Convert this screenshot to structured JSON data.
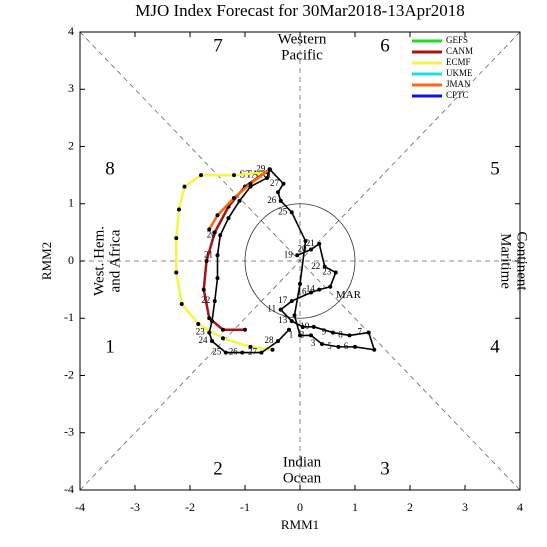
{
  "chart_data": {
    "type": "line",
    "title": "MJO Index Forecast for 30Mar2018-13Apr2018",
    "x_label": "RMM1",
    "y_label": "RMM2",
    "xlim": [
      -4,
      4
    ],
    "ylim": [
      -4,
      4
    ],
    "xticks": [
      -4,
      -3,
      -2,
      -1,
      0,
      1,
      2,
      3,
      4
    ],
    "yticks": [
      -4,
      -3,
      -2,
      -1,
      0,
      1,
      2,
      3,
      4
    ],
    "phases": [
      "1",
      "2",
      "3",
      "4",
      "5",
      "6",
      "7",
      "8"
    ],
    "regions": {
      "top": [
        "Western",
        "Pacific"
      ],
      "bottom": [
        "Indian",
        "Ocean"
      ],
      "left": [
        "West. Hem.",
        "and Africa"
      ],
      "right": [
        "Maritime",
        "Continent"
      ]
    },
    "annotations": [
      "MAR",
      "START"
    ],
    "series": [
      {
        "name": "GEFS",
        "color": "#22dd22",
        "x": [],
        "y": []
      },
      {
        "name": "CANM",
        "color": "#aa1111",
        "x": [
          -0.55,
          -1.0,
          -1.3,
          -1.55,
          -1.7,
          -1.75,
          -1.65,
          -1.4,
          -1.0
        ],
        "y": [
          1.6,
          1.3,
          0.95,
          0.5,
          0.0,
          -0.5,
          -1.0,
          -1.2,
          -1.2
        ]
      },
      {
        "name": "ECMF",
        "color": "#f5f542",
        "x": [
          -0.6,
          -1.2,
          -1.8,
          -2.1,
          -2.2,
          -2.25,
          -2.25,
          -2.15,
          -1.85,
          -1.4,
          -0.9,
          -0.5
        ],
        "y": [
          1.55,
          1.5,
          1.5,
          1.3,
          0.9,
          0.4,
          -0.2,
          -0.75,
          -1.1,
          -1.35,
          -1.5,
          -1.55
        ]
      },
      {
        "name": "UKME",
        "color": "#22dddd",
        "x": [],
        "y": []
      },
      {
        "name": "JMAN",
        "color": "#ff6611",
        "x": [
          -0.55,
          -0.9,
          -1.2,
          -1.5,
          -1.65
        ],
        "y": [
          1.6,
          1.35,
          1.1,
          0.8,
          0.55
        ]
      },
      {
        "name": "CPTC",
        "color": "#1111dd",
        "x": [],
        "y": []
      },
      {
        "color": "#000000",
        "x": [
          -0.05,
          0.2,
          0.35,
          0.45,
          0.65,
          0.55,
          0.35,
          0.2,
          -0.15,
          -0.35,
          -0.15,
          0.05,
          0.25,
          0.6,
          0.9,
          1.25,
          1.35,
          1.0,
          0.7,
          0.4,
          0.2,
          0.0,
          -0.1,
          0.0,
          0.1,
          -0.15,
          -0.35,
          -0.4,
          -0.3,
          -0.55
        ],
        "y": [
          0.1,
          0.2,
          0.3,
          -0.1,
          -0.2,
          -0.45,
          -0.5,
          -0.55,
          -0.7,
          -0.85,
          -1.05,
          -1.15,
          -1.15,
          -1.25,
          -1.3,
          -1.25,
          -1.55,
          -1.5,
          -1.5,
          -1.45,
          -1.3,
          -1.3,
          -0.95,
          -0.4,
          0.35,
          0.85,
          1.05,
          1.2,
          1.35,
          1.6
        ],
        "labels": [
          "19",
          "20",
          "21",
          "22",
          "23",
          null,
          "14",
          "16",
          "17",
          "11",
          "13",
          null,
          "10",
          "9",
          "8",
          "7",
          null,
          "6",
          "5",
          "3",
          "2",
          "1",
          null,
          null,
          null,
          "25",
          "26",
          null,
          "27",
          "29"
        ]
      },
      {
        "color": "#000000",
        "x": [
          -0.55,
          -0.6,
          -0.9,
          -1.1,
          -1.3,
          -1.45,
          -1.5,
          -1.5,
          -1.55,
          -1.6,
          -1.65,
          -1.6,
          -1.35,
          -1.05,
          -0.7,
          -0.4,
          -0.2
        ],
        "y": [
          1.6,
          1.45,
          1.3,
          1.05,
          0.75,
          0.45,
          0.1,
          -0.3,
          -0.7,
          -1.05,
          -1.25,
          -1.4,
          -1.6,
          -1.6,
          -1.6,
          -1.4,
          -1.2
        ],
        "labels": [
          null,
          null,
          null,
          null,
          null,
          "20",
          "21",
          null,
          "22",
          null,
          "23",
          "24",
          "25",
          "26",
          "27",
          "28",
          null
        ]
      }
    ]
  }
}
